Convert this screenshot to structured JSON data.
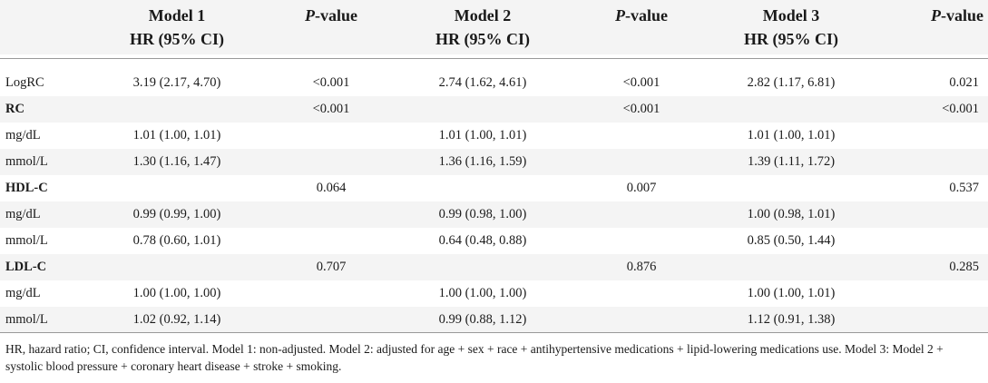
{
  "header": {
    "model1_title": "Model 1",
    "model1_sub": "HR (95% CI)",
    "pvalue_prefix": "P",
    "pvalue_suffix": "-value",
    "model2_title": "Model 2",
    "model2_sub": "HR (95% CI)",
    "model3_title": "Model 3",
    "model3_sub": "HR (95% CI)"
  },
  "rows": [
    {
      "label": "LogRC",
      "bold": false,
      "hr1": "3.19 (2.17, 4.70)",
      "p1": "<0.001",
      "hr2": "2.74 (1.62, 4.61)",
      "p2": "<0.001",
      "hr3": "2.82 (1.17, 6.81)",
      "p3": "0.021"
    },
    {
      "label": "RC",
      "bold": true,
      "hr1": "",
      "p1": "<0.001",
      "hr2": "",
      "p2": "<0.001",
      "hr3": "",
      "p3": "<0.001"
    },
    {
      "label": "mg/dL",
      "bold": false,
      "hr1": "1.01 (1.00, 1.01)",
      "p1": "",
      "hr2": "1.01 (1.00, 1.01)",
      "p2": "",
      "hr3": "1.01 (1.00, 1.01)",
      "p3": ""
    },
    {
      "label": "mmol/L",
      "bold": false,
      "hr1": "1.30 (1.16, 1.47)",
      "p1": "",
      "hr2": "1.36 (1.16, 1.59)",
      "p2": "",
      "hr3": "1.39 (1.11, 1.72)",
      "p3": ""
    },
    {
      "label": "HDL-C",
      "bold": true,
      "hr1": "",
      "p1": "0.064",
      "hr2": "",
      "p2": "0.007",
      "hr3": "",
      "p3": "0.537"
    },
    {
      "label": "mg/dL",
      "bold": false,
      "hr1": "0.99 (0.99, 1.00)",
      "p1": "",
      "hr2": "0.99 (0.98, 1.00)",
      "p2": "",
      "hr3": "1.00 (0.98, 1.01)",
      "p3": ""
    },
    {
      "label": "mmol/L",
      "bold": false,
      "hr1": "0.78 (0.60, 1.01)",
      "p1": "",
      "hr2": "0.64 (0.48, 0.88)",
      "p2": "",
      "hr3": "0.85 (0.50, 1.44)",
      "p3": ""
    },
    {
      "label": "LDL-C",
      "bold": true,
      "hr1": "",
      "p1": "0.707",
      "hr2": "",
      "p2": "0.876",
      "hr3": "",
      "p3": "0.285"
    },
    {
      "label": "mg/dL",
      "bold": false,
      "hr1": "1.00 (1.00, 1.00)",
      "p1": "",
      "hr2": "1.00 (1.00, 1.00)",
      "p2": "",
      "hr3": "1.00 (1.00, 1.01)",
      "p3": ""
    },
    {
      "label": "mmol/L",
      "bold": false,
      "hr1": "1.02 (0.92, 1.14)",
      "p1": "",
      "hr2": "0.99 (0.88, 1.12)",
      "p2": "",
      "hr3": "1.12 (0.91, 1.38)",
      "p3": ""
    }
  ],
  "footnote": "HR, hazard ratio; CI, confidence interval. Model 1: non-adjusted. Model 2: adjusted for age + sex + race + antihypertensive medications + lipid-lowering medications use. Model 3: Model 2 + systolic blood pressure + coronary heart disease + stroke + smoking.",
  "colors": {
    "shade": "#f4f4f4",
    "rule": "#9a9a9a",
    "text": "#1a1a1a"
  }
}
